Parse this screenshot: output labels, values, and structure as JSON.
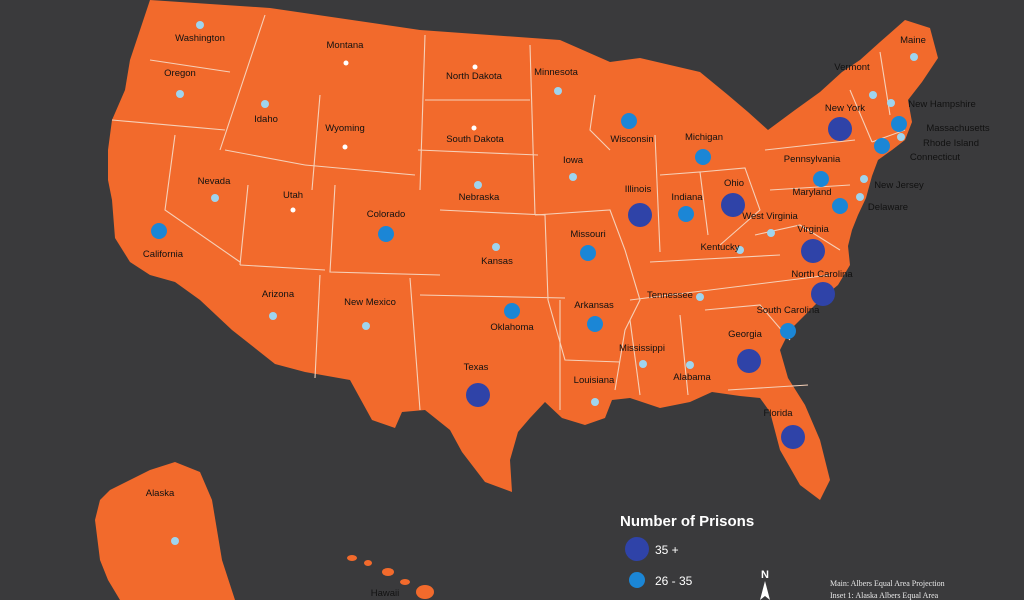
{
  "map": {
    "land_color": "#f26a2c",
    "border_color": "#f6d0b8",
    "background_color": "#3a3a3c"
  },
  "legend": {
    "title": "Number of Prisons",
    "items": [
      {
        "label": "35 +",
        "color": "#2f43a8",
        "size_class": "large"
      },
      {
        "label": "26 - 35",
        "color": "#1b86d6",
        "size_class": "medium"
      }
    ]
  },
  "north_label": "N",
  "credits": {
    "line1": "Main: Albers Equal Area Projection",
    "line2": "Inset 1: Alaska Albers Equal Area"
  },
  "states": [
    {
      "name": "Washington",
      "category": "small"
    },
    {
      "name": "Oregon",
      "category": "small"
    },
    {
      "name": "Idaho",
      "category": "small"
    },
    {
      "name": "Montana",
      "category": "dot"
    },
    {
      "name": "Wyoming",
      "category": "dot"
    },
    {
      "name": "North Dakota",
      "category": "dot"
    },
    {
      "name": "South Dakota",
      "category": "dot"
    },
    {
      "name": "Minnesota",
      "category": "small"
    },
    {
      "name": "Wisconsin",
      "category": "medium"
    },
    {
      "name": "Michigan",
      "category": "medium"
    },
    {
      "name": "Iowa",
      "category": "small"
    },
    {
      "name": "Nebraska",
      "category": "small"
    },
    {
      "name": "Nevada",
      "category": "small"
    },
    {
      "name": "Utah",
      "category": "dot"
    },
    {
      "name": "Colorado",
      "category": "medium"
    },
    {
      "name": "California",
      "category": "medium"
    },
    {
      "name": "Kansas",
      "category": "small"
    },
    {
      "name": "Missouri",
      "category": "medium"
    },
    {
      "name": "Illinois",
      "category": "large"
    },
    {
      "name": "Indiana",
      "category": "medium"
    },
    {
      "name": "Ohio",
      "category": "large"
    },
    {
      "name": "Kentucky",
      "category": "small"
    },
    {
      "name": "West Virginia",
      "category": "small"
    },
    {
      "name": "Virginia",
      "category": "large"
    },
    {
      "name": "Pennsylvania",
      "category": "medium"
    },
    {
      "name": "Maryland",
      "category": "medium"
    },
    {
      "name": "New York",
      "category": "large"
    },
    {
      "name": "Vermont",
      "category": "small"
    },
    {
      "name": "Maine",
      "category": "small"
    },
    {
      "name": "New Hampshire",
      "category": "small"
    },
    {
      "name": "Massachusetts",
      "category": "medium"
    },
    {
      "name": "Rhode Island",
      "category": "small"
    },
    {
      "name": "Connecticut",
      "category": "medium"
    },
    {
      "name": "New Jersey",
      "category": "small"
    },
    {
      "name": "Delaware",
      "category": "small"
    },
    {
      "name": "North Carolina",
      "category": "large"
    },
    {
      "name": "South Carolina",
      "category": "medium"
    },
    {
      "name": "Tennessee",
      "category": "small"
    },
    {
      "name": "Arkansas",
      "category": "medium"
    },
    {
      "name": "Oklahoma",
      "category": "medium"
    },
    {
      "name": "Arizona",
      "category": "small"
    },
    {
      "name": "New Mexico",
      "category": "small"
    },
    {
      "name": "Texas",
      "category": "large"
    },
    {
      "name": "Louisiana",
      "category": "small"
    },
    {
      "name": "Mississippi",
      "category": "small"
    },
    {
      "name": "Alabama",
      "category": "small"
    },
    {
      "name": "Georgia",
      "category": "large"
    },
    {
      "name": "Florida",
      "category": "large"
    },
    {
      "name": "Alaska",
      "category": "small"
    },
    {
      "name": "Hawaii",
      "category": "none"
    }
  ]
}
